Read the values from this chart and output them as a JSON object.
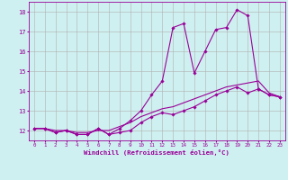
{
  "xlabel": "Windchill (Refroidissement éolien,°C)",
  "background_color": "#cff0f0",
  "grid_color": "#b0b0b0",
  "line_color": "#990099",
  "x_values": [
    0,
    1,
    2,
    3,
    4,
    5,
    6,
    7,
    8,
    9,
    10,
    11,
    12,
    13,
    14,
    15,
    16,
    17,
    18,
    19,
    20,
    21,
    22,
    23
  ],
  "line1": [
    12.1,
    12.1,
    11.9,
    12.0,
    11.8,
    11.8,
    12.1,
    11.8,
    12.1,
    12.5,
    13.0,
    13.8,
    14.5,
    17.2,
    17.4,
    14.9,
    16.0,
    17.1,
    17.2,
    18.1,
    17.8,
    14.1,
    13.8,
    13.7
  ],
  "line2": [
    12.1,
    12.1,
    11.9,
    12.0,
    11.8,
    11.8,
    12.1,
    11.8,
    11.9,
    12.0,
    12.4,
    12.7,
    12.9,
    12.8,
    13.0,
    13.2,
    13.5,
    13.8,
    14.0,
    14.2,
    13.9,
    14.1,
    13.8,
    13.7
  ],
  "line3": [
    12.1,
    12.1,
    12.0,
    12.0,
    11.9,
    11.9,
    12.0,
    12.0,
    12.2,
    12.4,
    12.7,
    12.9,
    13.1,
    13.2,
    13.4,
    13.6,
    13.8,
    14.0,
    14.2,
    14.3,
    14.4,
    14.5,
    13.9,
    13.7
  ],
  "ylim": [
    11.5,
    18.5
  ],
  "yticks": [
    12,
    13,
    14,
    15,
    16,
    17,
    18
  ],
  "xlim": [
    -0.5,
    23.5
  ],
  "xticks": [
    0,
    1,
    2,
    3,
    4,
    5,
    6,
    7,
    8,
    9,
    10,
    11,
    12,
    13,
    14,
    15,
    16,
    17,
    18,
    19,
    20,
    21,
    22,
    23
  ]
}
